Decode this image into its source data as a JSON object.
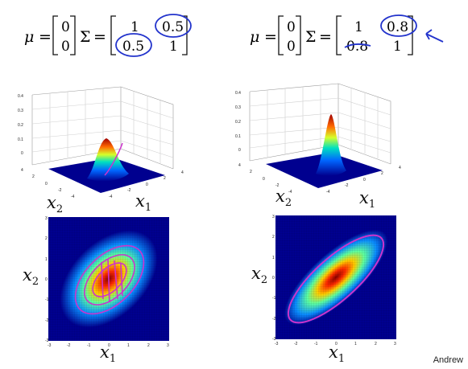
{
  "equations": [
    {
      "mu_symbol": "μ",
      "mu": [
        "0",
        "0"
      ],
      "sigma_symbol": "Σ",
      "sigma": [
        [
          "1",
          "0.5"
        ],
        [
          "0.5",
          "1"
        ]
      ]
    },
    {
      "mu_symbol": "μ",
      "mu": [
        "0",
        "0"
      ],
      "sigma_symbol": "Σ",
      "sigma": [
        [
          "1",
          "0.8"
        ],
        [
          "0.8",
          "1"
        ]
      ]
    }
  ],
  "plot3d": {
    "zticks": [
      "0.4",
      "0.3",
      "0.2",
      "0.1",
      "0"
    ],
    "ticks_x1": [
      "-4",
      "-2",
      "0",
      "2",
      "4"
    ],
    "ticks_x2": [
      "4",
      "2",
      "0",
      "-2",
      "-4"
    ]
  },
  "contour": {
    "ticks_x": [
      "-3",
      "-2",
      "-1",
      "0",
      "1",
      "2",
      "3"
    ],
    "ticks_y": [
      "3",
      "2",
      "1",
      "0",
      "-1",
      "-2",
      "-3"
    ]
  },
  "axis_labels": {
    "x1_base": "x",
    "x1_sub": "1",
    "x2_base": "x",
    "x2_sub": "2"
  },
  "credit": "Andrew",
  "colors": {
    "annotation": "#2233cc",
    "contour_line": "#cc33cc",
    "bg_dark": "#00008f",
    "peak": "#7a0000"
  }
}
